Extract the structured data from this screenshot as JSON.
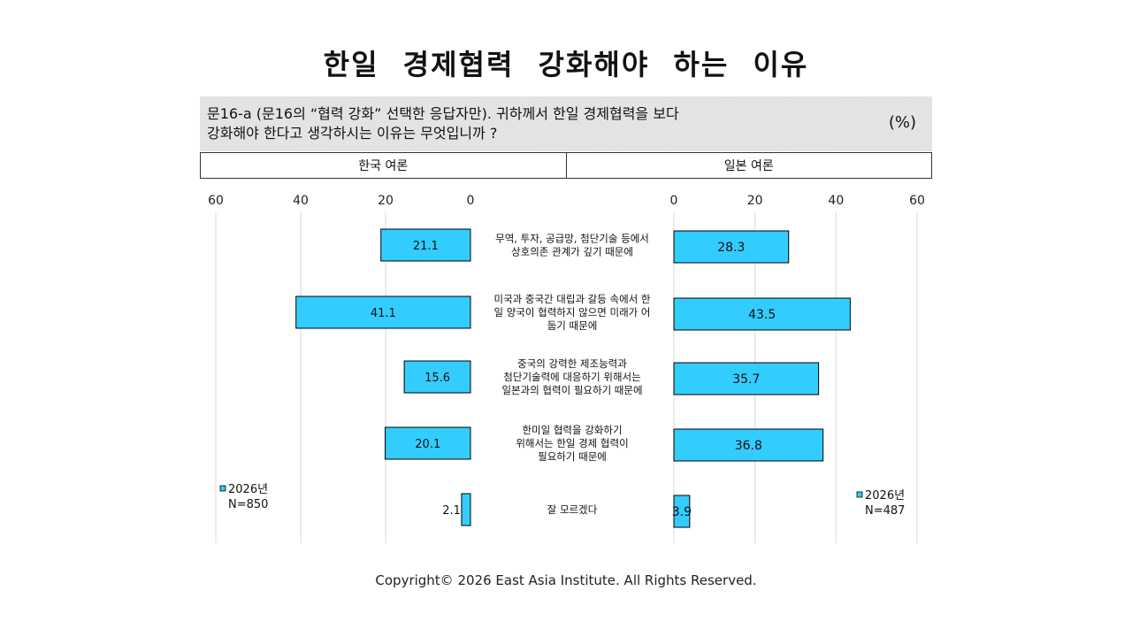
{
  "title": "한일  경제협력 강화해야 하는 이유",
  "question": {
    "line1": "문16-a (문16의 “협력 강화” 선택한 응답자만). 귀하께서 한일 경제협력을 보다",
    "line2": "강화해야 한다고 생각하시는 이유는 무엇입니까 ?",
    "unit": "(%)"
  },
  "headers": {
    "left": "한국 여론",
    "right": "일본 여론"
  },
  "footer": "Copyright© 2026 East Asia Institute. All Rights Reserved.",
  "colors": {
    "bar": "#33ccff",
    "bar_border": "#000000",
    "grid": "#d9d9d9"
  },
  "chart_data": {
    "type": "bar",
    "orientation": "horizontal",
    "categories": [
      [
        "무역, 투자, 공급망, 첨단기술 등에서",
        "상호의존 관계가 깊기 때문에"
      ],
      [
        "미국과 중국간 대립과 갈등 속에서 한",
        "일 양국이 협력하지 않으면 미래가 어",
        "둡기 때문에"
      ],
      [
        "중국의 강력한 제조능력과",
        "첨단기술력에 대응하기 위해서는",
        "일본과의 협력이 필요하기 때문에"
      ],
      [
        "한미일 협력을 강화하기",
        "위해서는 한일 경제 협력이",
        "필요하기 때문에"
      ],
      [
        "잘 모르겠다"
      ]
    ],
    "panels": [
      {
        "name": "한국 여론",
        "series": [
          {
            "name": "2026년",
            "values": [
              21.1,
              41.1,
              15.6,
              20.1,
              2.1
            ]
          }
        ],
        "legend": {
          "label": "2026년",
          "n": "N=850"
        },
        "xlim": [
          0,
          60
        ],
        "ticks": [
          60,
          40,
          20,
          0
        ],
        "direction": "reversed"
      },
      {
        "name": "일본 여론",
        "series": [
          {
            "name": "2026년",
            "values": [
              28.3,
              43.5,
              35.7,
              36.8,
              3.9
            ]
          }
        ],
        "legend": {
          "label": "2026년",
          "n": "N=487"
        },
        "xlim": [
          0,
          60
        ],
        "ticks": [
          0,
          20,
          40,
          60
        ],
        "direction": "normal"
      }
    ],
    "grid": true
  }
}
